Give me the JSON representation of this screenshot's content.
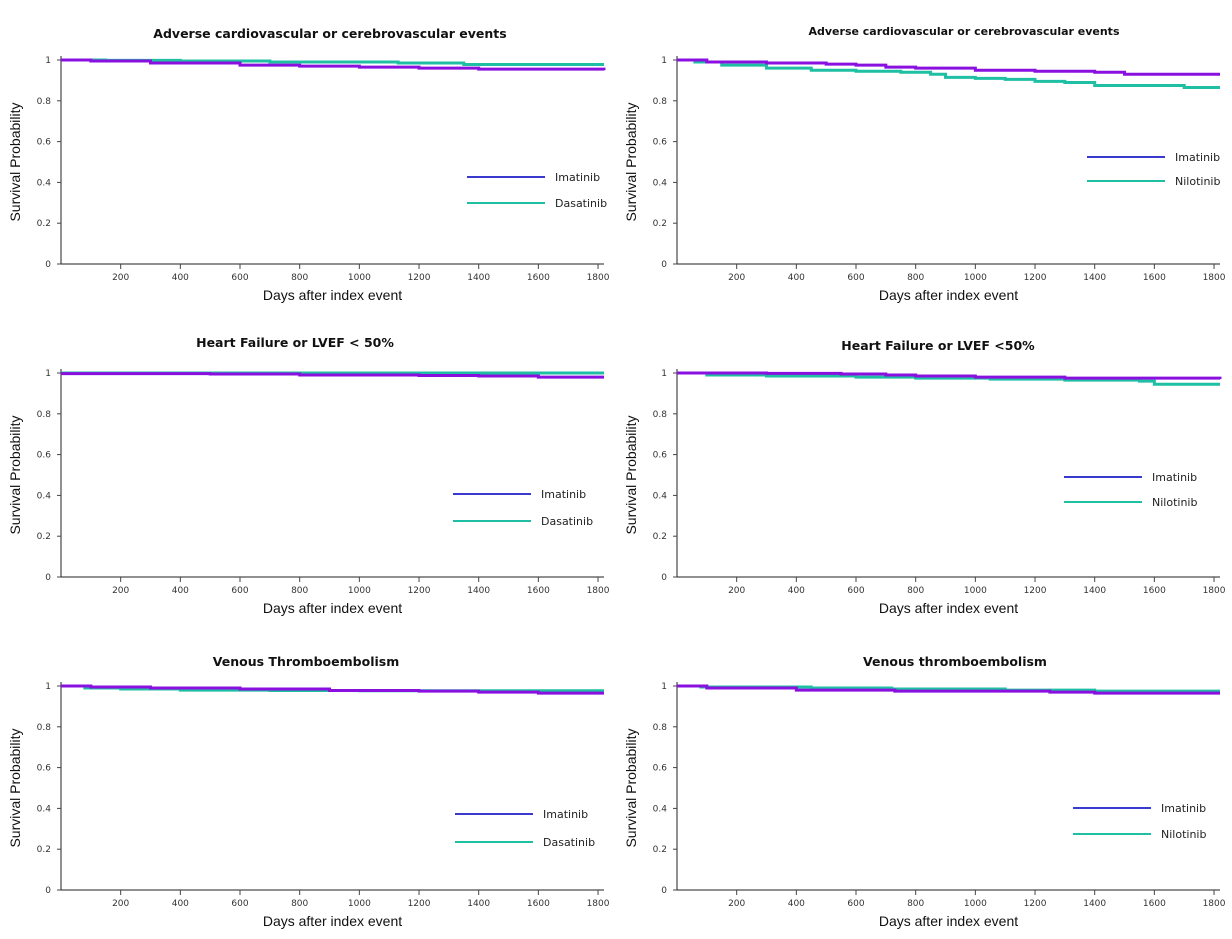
{
  "colors": {
    "imatinib": "#8a10e0",
    "comparator": "#1fbfa4",
    "legend_imatinib": "#3a3ad0"
  },
  "chart_data": [
    {
      "type": "line",
      "title": "Adverse cardiovascular or cerebrovascular events",
      "xlabel": "Days after index event",
      "ylabel": "Survival Probability",
      "xlim": [
        0,
        1820
      ],
      "ylim": [
        0,
        1
      ],
      "xticks": [
        "200",
        "400",
        "600",
        "800",
        "1000",
        "1200",
        "1400",
        "1600",
        "1800"
      ],
      "yticks": [
        "0",
        "0.2",
        "0.4",
        "0.6",
        "0.8",
        "1"
      ],
      "grid": false,
      "legend": "right",
      "series": [
        {
          "name": "Imatinib",
          "color": "imatinib",
          "x": [
            0,
            100,
            300,
            600,
            800,
            1000,
            1200,
            1400,
            1820
          ],
          "y": [
            1.0,
            0.995,
            0.985,
            0.975,
            0.97,
            0.965,
            0.96,
            0.955,
            0.95
          ]
        },
        {
          "name": "Dasatinib",
          "color": "comparator",
          "x": [
            0,
            150,
            400,
            700,
            1130,
            1350,
            1820
          ],
          "y": [
            1.0,
            0.998,
            0.995,
            0.99,
            0.985,
            0.978,
            0.978
          ]
        }
      ]
    },
    {
      "type": "line",
      "title": "Adverse cardiovascular or cerebrovascular events",
      "xlabel": "Days after index event",
      "ylabel": "Survival Probability",
      "xlim": [
        0,
        1820
      ],
      "ylim": [
        0,
        1
      ],
      "xticks": [
        "200",
        "400",
        "600",
        "800",
        "1000",
        "1200",
        "1400",
        "1600",
        "1800"
      ],
      "yticks": [
        "0",
        "0.2",
        "0.4",
        "0.6",
        "0.8",
        "1"
      ],
      "grid": false,
      "legend": "right",
      "series": [
        {
          "name": "Imatinib",
          "color": "imatinib",
          "x": [
            0,
            100,
            300,
            500,
            600,
            700,
            800,
            1000,
            1200,
            1400,
            1500,
            1820
          ],
          "y": [
            1.0,
            0.99,
            0.985,
            0.98,
            0.975,
            0.965,
            0.96,
            0.95,
            0.945,
            0.94,
            0.93,
            0.93
          ]
        },
        {
          "name": "Nilotinib",
          "color": "comparator",
          "x": [
            0,
            60,
            150,
            300,
            450,
            600,
            750,
            850,
            900,
            1000,
            1100,
            1200,
            1300,
            1400,
            1600,
            1700,
            1820
          ],
          "y": [
            1.0,
            0.99,
            0.975,
            0.96,
            0.95,
            0.945,
            0.94,
            0.93,
            0.915,
            0.91,
            0.905,
            0.895,
            0.89,
            0.875,
            0.875,
            0.865,
            0.865
          ]
        }
      ]
    },
    {
      "type": "line",
      "title": "Heart Failure or LVEF < 50%",
      "xlabel": "Days after index event",
      "ylabel": "Survival Probability",
      "xlim": [
        0,
        1820
      ],
      "ylim": [
        0,
        1
      ],
      "xticks": [
        "200",
        "400",
        "600",
        "800",
        "1000",
        "1200",
        "1400",
        "1600",
        "1800"
      ],
      "yticks": [
        "0",
        "0.2",
        "0.4",
        "0.6",
        "0.8",
        "1"
      ],
      "grid": false,
      "legend": "right",
      "series": [
        {
          "name": "Imatinib",
          "color": "imatinib",
          "x": [
            0,
            500,
            800,
            1200,
            1400,
            1600,
            1820
          ],
          "y": [
            0.997,
            0.995,
            0.99,
            0.988,
            0.985,
            0.98,
            0.98
          ]
        },
        {
          "name": "Dasatinib",
          "color": "comparator",
          "x": [
            0,
            1820
          ],
          "y": [
            1.0,
            1.0
          ]
        }
      ]
    },
    {
      "type": "line",
      "title": "Heart Failure or LVEF <50%",
      "xlabel": "Days after index event",
      "ylabel": "Survival Probability",
      "xlim": [
        0,
        1820
      ],
      "ylim": [
        0,
        1
      ],
      "xticks": [
        "200",
        "400",
        "600",
        "800",
        "1000",
        "1200",
        "1400",
        "1600",
        "1800"
      ],
      "yticks": [
        "0",
        "0.2",
        "0.4",
        "0.6",
        "0.8",
        "1"
      ],
      "grid": false,
      "legend": "right",
      "series": [
        {
          "name": "Imatinib",
          "color": "imatinib",
          "x": [
            0,
            300,
            550,
            700,
            800,
            1000,
            1300,
            1820
          ],
          "y": [
            1.0,
            0.998,
            0.995,
            0.99,
            0.985,
            0.98,
            0.975,
            0.97
          ]
        },
        {
          "name": "Nilotinib",
          "color": "comparator",
          "x": [
            0,
            100,
            300,
            600,
            800,
            1050,
            1300,
            1550,
            1600,
            1820
          ],
          "y": [
            1.0,
            0.99,
            0.985,
            0.98,
            0.975,
            0.97,
            0.965,
            0.96,
            0.945,
            0.945
          ]
        }
      ]
    },
    {
      "type": "line",
      "title": "Venous Thromboembolism",
      "xlabel": "Days after index event",
      "ylabel": "Survival Probability",
      "xlim": [
        0,
        1820
      ],
      "ylim": [
        0,
        1
      ],
      "xticks": [
        "200",
        "400",
        "600",
        "800",
        "1000",
        "1200",
        "1400",
        "1600",
        "1800"
      ],
      "yticks": [
        "0",
        "0.2",
        "0.4",
        "0.6",
        "0.8",
        "1"
      ],
      "grid": false,
      "legend": "right",
      "series": [
        {
          "name": "Imatinib",
          "color": "imatinib",
          "x": [
            0,
            100,
            300,
            600,
            900,
            1200,
            1400,
            1600,
            1820
          ],
          "y": [
            1.0,
            0.995,
            0.99,
            0.985,
            0.978,
            0.975,
            0.97,
            0.965,
            0.965
          ]
        },
        {
          "name": "Dasatinib",
          "color": "comparator",
          "x": [
            0,
            80,
            200,
            400,
            700,
            1000,
            1820
          ],
          "y": [
            1.0,
            0.99,
            0.985,
            0.98,
            0.978,
            0.977,
            0.977
          ]
        }
      ]
    },
    {
      "type": "line",
      "title": "Venous thromboembolism",
      "xlabel": "Days after index event",
      "ylabel": "Survival Probability",
      "xlim": [
        0,
        1820
      ],
      "ylim": [
        0,
        1
      ],
      "xticks": [
        "200",
        "400",
        "600",
        "800",
        "1000",
        "1200",
        "1400",
        "1600",
        "1800"
      ],
      "yticks": [
        "0",
        "0.2",
        "0.4",
        "0.6",
        "0.8",
        "1"
      ],
      "grid": false,
      "legend": "right",
      "series": [
        {
          "name": "Imatinib",
          "color": "imatinib",
          "x": [
            0,
            100,
            400,
            730,
            1000,
            1250,
            1400,
            1820
          ],
          "y": [
            1.0,
            0.99,
            0.98,
            0.975,
            0.975,
            0.97,
            0.965,
            0.965
          ]
        },
        {
          "name": "Nilotinib",
          "color": "comparator",
          "x": [
            0,
            80,
            450,
            720,
            1100,
            1400,
            1820
          ],
          "y": [
            1.0,
            0.995,
            0.99,
            0.985,
            0.98,
            0.975,
            0.975
          ]
        }
      ]
    }
  ]
}
